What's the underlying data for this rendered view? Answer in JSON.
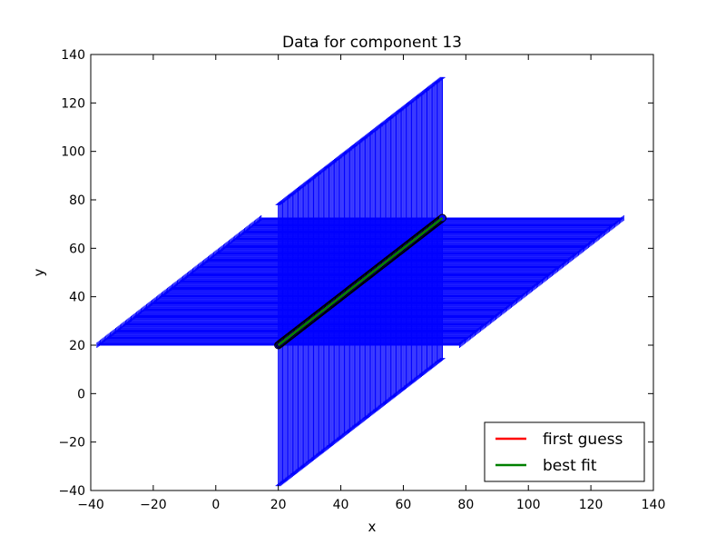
{
  "chart_data": {
    "type": "scatter",
    "title": "Data for component 13",
    "xlabel": "x",
    "ylabel": "y",
    "xlim": [
      -40,
      140
    ],
    "ylim": [
      -40,
      140
    ],
    "xticks": [
      -40,
      -20,
      0,
      20,
      40,
      60,
      80,
      100,
      120,
      140
    ],
    "yticks": [
      -40,
      -20,
      0,
      20,
      40,
      60,
      80,
      100,
      120,
      140
    ],
    "grid": false,
    "legend_position": "lower-right",
    "colors": {
      "data": "#0000ff",
      "marker_edge": "#000000",
      "first_guess": "#ff0000",
      "best_fit": "#008000"
    },
    "data_points": {
      "x_start": 20,
      "x_end": 72.5,
      "count": 150,
      "err_at_start": 58,
      "err_at_end": 58,
      "x_err_at_start": 58,
      "x_err_at_end": 58
    },
    "series": [
      {
        "name": "first guess",
        "x": [
          20,
          72.5
        ],
        "y": [
          20,
          72.5
        ]
      },
      {
        "name": "best fit",
        "x": [
          20,
          72.5
        ],
        "y": [
          20,
          72.5
        ]
      }
    ]
  }
}
